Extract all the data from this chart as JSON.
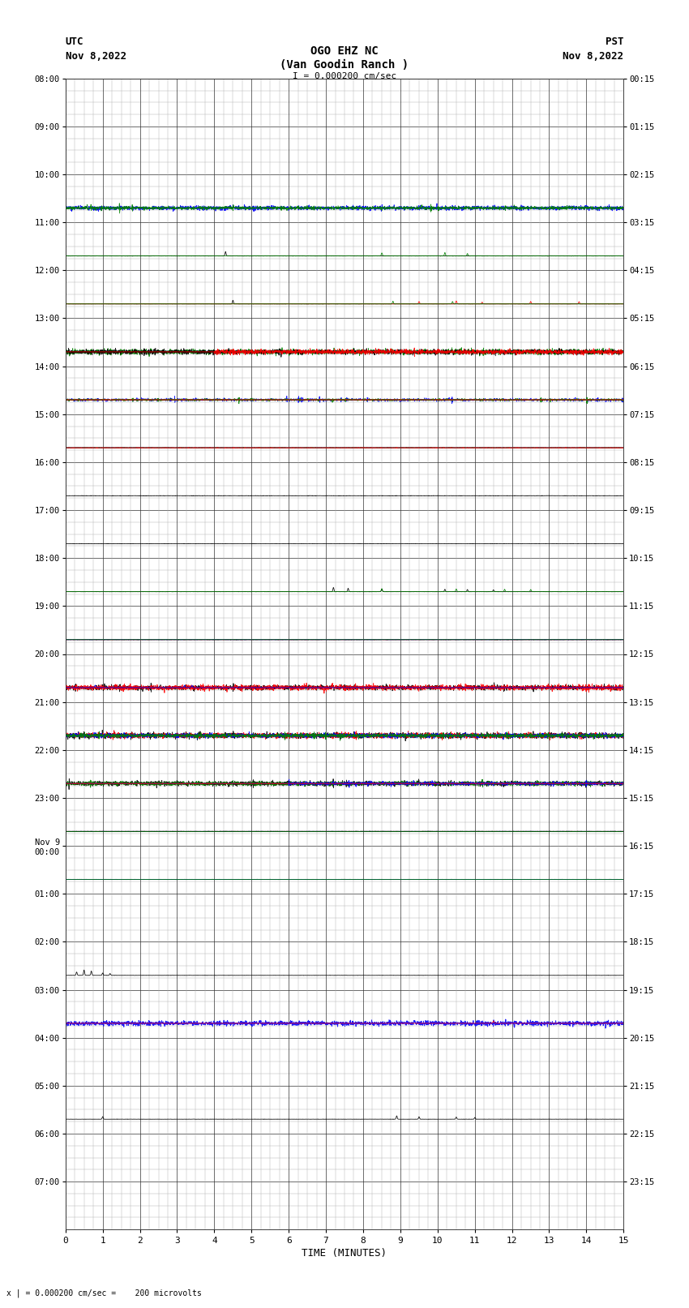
{
  "title_line1": "OGO EHZ NC",
  "title_line2": "(Van Goodin Ranch )",
  "title_line3": "I = 0.000200 cm/sec",
  "left_header_line1": "UTC",
  "left_header_line2": "Nov 8,2022",
  "right_header_line1": "PST",
  "right_header_line2": "Nov 8,2022",
  "bottom_label": "TIME (MINUTES)",
  "bottom_note": "x | = 0.000200 cm/sec =    200 microvolts",
  "xlim": [
    0,
    15
  ],
  "xticks": [
    0,
    1,
    2,
    3,
    4,
    5,
    6,
    7,
    8,
    9,
    10,
    11,
    12,
    13,
    14,
    15
  ],
  "background_color": "#ffffff",
  "num_rows": 24,
  "utc_labels": [
    "08:00",
    "09:00",
    "10:00",
    "11:00",
    "12:00",
    "13:00",
    "14:00",
    "15:00",
    "16:00",
    "17:00",
    "18:00",
    "19:00",
    "20:00",
    "21:00",
    "22:00",
    "23:00",
    "Nov 9\n00:00",
    "01:00",
    "02:00",
    "03:00",
    "04:00",
    "05:00",
    "06:00",
    "07:00"
  ],
  "pst_labels": [
    "00:15",
    "01:15",
    "02:15",
    "03:15",
    "04:15",
    "05:15",
    "06:15",
    "07:15",
    "08:15",
    "09:15",
    "10:15",
    "11:15",
    "12:15",
    "13:15",
    "14:15",
    "15:15",
    "16:15",
    "17:15",
    "18:15",
    "19:15",
    "20:15",
    "21:15",
    "22:15",
    "23:15"
  ]
}
